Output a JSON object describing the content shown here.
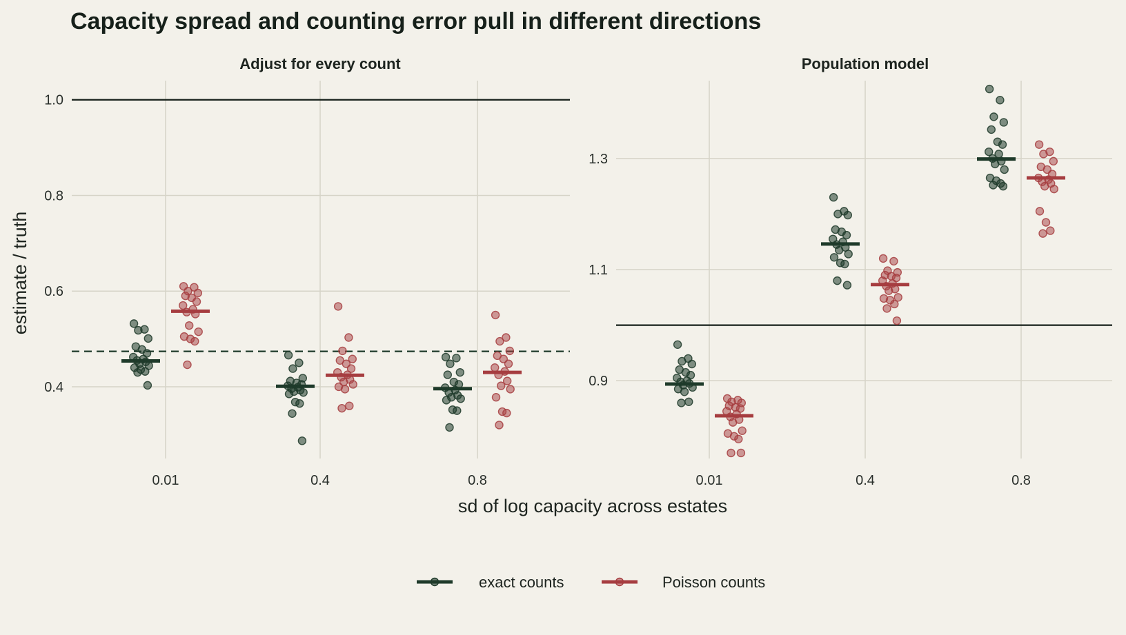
{
  "title": "Capacity spread and counting error pull in different directions",
  "colors": {
    "background": "#f3f1ea",
    "grid": "#d6d4c8",
    "reference_line": "#16201a",
    "exact": "#1e3a2a",
    "poisson": "#a63d40"
  },
  "chart_data": [
    {
      "type": "scatter",
      "panel": "Adjust for every count",
      "categories": [
        "0.01",
        "0.4",
        "0.8"
      ],
      "xlabel": "sd of log capacity across estates",
      "ylabel": "estimate / truth",
      "ylim": [
        0.25,
        1.04
      ],
      "yticks": [
        0.4,
        0.6,
        0.8,
        1.0
      ],
      "ytick_labels": [
        "0.4",
        "0.6",
        "0.8",
        "1.0"
      ],
      "reference_line": 1.0,
      "dashed_line": 0.474,
      "grid": true,
      "series": [
        {
          "name": "exact counts",
          "means": [
            0.454,
            0.401,
            0.396
          ],
          "points": [
            [
              0.532,
              0.52,
              0.518,
              0.501,
              0.484,
              0.478,
              0.47,
              0.462,
              0.458,
              0.455,
              0.452,
              0.448,
              0.444,
              0.44,
              0.436,
              0.432,
              0.43,
              0.403
            ],
            [
              0.466,
              0.45,
              0.438,
              0.418,
              0.412,
              0.408,
              0.405,
              0.402,
              0.399,
              0.396,
              0.393,
              0.39,
              0.388,
              0.385,
              0.368,
              0.365,
              0.344,
              0.287
            ],
            [
              0.462,
              0.46,
              0.448,
              0.43,
              0.425,
              0.41,
              0.405,
              0.398,
              0.393,
              0.388,
              0.382,
              0.378,
              0.375,
              0.372,
              0.352,
              0.35,
              0.315
            ]
          ]
        },
        {
          "name": "Poisson counts",
          "means": [
            0.558,
            0.424,
            0.43
          ],
          "points": [
            [
              0.61,
              0.608,
              0.6,
              0.596,
              0.59,
              0.586,
              0.578,
              0.57,
              0.562,
              0.556,
              0.552,
              0.528,
              0.515,
              0.505,
              0.5,
              0.495,
              0.446
            ],
            [
              0.568,
              0.503,
              0.475,
              0.458,
              0.455,
              0.448,
              0.438,
              0.43,
              0.425,
              0.42,
              0.415,
              0.41,
              0.405,
              0.4,
              0.395,
              0.36,
              0.355
            ],
            [
              0.55,
              0.503,
              0.495,
              0.475,
              0.465,
              0.458,
              0.448,
              0.44,
              0.432,
              0.425,
              0.412,
              0.402,
              0.395,
              0.378,
              0.348,
              0.345,
              0.32
            ]
          ]
        }
      ]
    },
    {
      "type": "scatter",
      "panel": "Population model",
      "categories": [
        "0.01",
        "0.4",
        "0.8"
      ],
      "xlabel": "sd of log capacity across estates",
      "ylabel": "estimate / truth",
      "ylim": [
        0.76,
        1.44
      ],
      "yticks": [
        0.9,
        1.1,
        1.3
      ],
      "ytick_labels": [
        "0.9",
        "1.1",
        "1.3"
      ],
      "reference_line": 1.0,
      "grid": true,
      "series": [
        {
          "name": "exact counts",
          "means": [
            0.894,
            1.146,
            1.299
          ],
          "points": [
            [
              0.965,
              0.94,
              0.935,
              0.93,
              0.92,
              0.915,
              0.91,
              0.905,
              0.9,
              0.898,
              0.895,
              0.892,
              0.888,
              0.885,
              0.88,
              0.862,
              0.86
            ],
            [
              1.23,
              1.205,
              1.2,
              1.198,
              1.172,
              1.168,
              1.162,
              1.155,
              1.15,
              1.145,
              1.14,
              1.135,
              1.128,
              1.122,
              1.112,
              1.11,
              1.08,
              1.072
            ],
            [
              1.425,
              1.405,
              1.375,
              1.365,
              1.352,
              1.33,
              1.325,
              1.312,
              1.308,
              1.3,
              1.295,
              1.29,
              1.28,
              1.265,
              1.26,
              1.255,
              1.252,
              1.25
            ]
          ]
        },
        {
          "name": "Poisson counts",
          "means": [
            0.837,
            1.073,
            1.265
          ],
          "points": [
            [
              0.868,
              0.865,
              0.862,
              0.86,
              0.855,
              0.852,
              0.85,
              0.845,
              0.84,
              0.835,
              0.83,
              0.825,
              0.81,
              0.805,
              0.8,
              0.795,
              0.77,
              0.77
            ],
            [
              1.12,
              1.115,
              1.098,
              1.095,
              1.09,
              1.088,
              1.085,
              1.08,
              1.075,
              1.07,
              1.065,
              1.062,
              1.05,
              1.048,
              1.045,
              1.038,
              1.03,
              1.008
            ],
            [
              1.325,
              1.312,
              1.308,
              1.295,
              1.285,
              1.28,
              1.272,
              1.265,
              1.262,
              1.258,
              1.255,
              1.25,
              1.245,
              1.205,
              1.185,
              1.17,
              1.165
            ]
          ]
        }
      ]
    }
  ],
  "legend": {
    "position": "bottom",
    "items": [
      {
        "label": "exact counts",
        "color": "#1e3a2a"
      },
      {
        "label": "Poisson counts",
        "color": "#a63d40"
      }
    ]
  }
}
